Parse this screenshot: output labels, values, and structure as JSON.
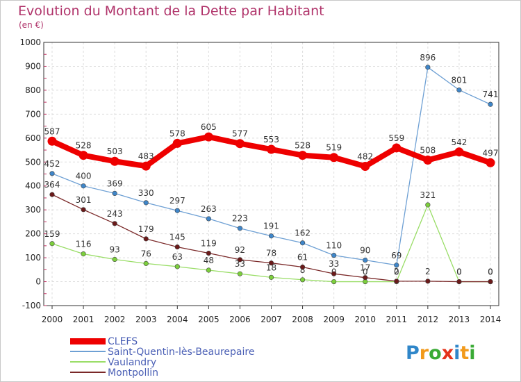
{
  "chart_data": {
    "type": "line",
    "title": "Evolution du Montant de la Dette par Habitant",
    "subtitle": "(en €)",
    "categories": [
      "2000",
      "2001",
      "2002",
      "2003",
      "2004",
      "2005",
      "2006",
      "2007",
      "2008",
      "2009",
      "2010",
      "2011",
      "2012",
      "2013",
      "2014"
    ],
    "ylim": [
      -100,
      1000
    ],
    "yticks": [
      -100,
      0,
      100,
      200,
      300,
      400,
      500,
      600,
      700,
      800,
      900,
      1000
    ],
    "grid": true,
    "legend_placement": "bottom-left",
    "series": [
      {
        "name": "CLEFS",
        "color": "#ee0000",
        "values": [
          587,
          528,
          503,
          483,
          578,
          605,
          577,
          553,
          528,
          519,
          482,
          559,
          508,
          542,
          497
        ],
        "labels": [
          "587",
          "528",
          "503",
          "483",
          "578",
          "605",
          "577",
          "553",
          "528",
          "519",
          "482",
          "559",
          "508",
          "542",
          "497"
        ]
      },
      {
        "name": "Saint-Quentin-lès-Beaurepaire",
        "color": "#6ea0d4",
        "values": [
          452,
          400,
          369,
          330,
          297,
          263,
          223,
          191,
          162,
          110,
          90,
          69,
          896,
          801,
          741
        ],
        "labels": [
          "452",
          "400",
          "369",
          "330",
          "297",
          "263",
          "223",
          "191",
          "162",
          "110",
          "90",
          "69",
          "896",
          "801",
          "741"
        ]
      },
      {
        "name": "Vaulandry",
        "color": "#99dd66",
        "values": [
          159,
          116,
          93,
          76,
          63,
          48,
          33,
          18,
          8,
          0,
          0,
          0,
          321,
          0,
          0
        ],
        "labels": [
          "159",
          "116",
          "93",
          "76",
          "63",
          "48",
          "33",
          "18",
          "8",
          "0",
          "0",
          "0",
          "321",
          "0",
          "0"
        ]
      },
      {
        "name": "Montpollin",
        "color": "#7a2828",
        "values": [
          364,
          301,
          243,
          179,
          145,
          119,
          92,
          78,
          61,
          33,
          17,
          2,
          2,
          0,
          0
        ],
        "labels": [
          "364",
          "301",
          "243",
          "179",
          "145",
          "119",
          "92",
          "78",
          "61",
          "33",
          "17",
          "2",
          "2",
          "0",
          "0"
        ]
      }
    ]
  },
  "branding": {
    "logo_text": "Proxiti"
  }
}
